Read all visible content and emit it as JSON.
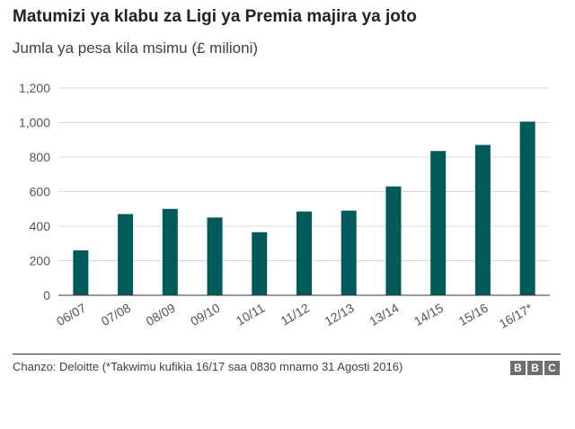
{
  "header": {
    "title": "Matumizi ya klabu za Ligi ya Premia majira ya joto",
    "subtitle": "Jumla ya pesa kila msimu (£ milioni)"
  },
  "footer": {
    "source": "Chanzo: Deloitte (*Takwimu kufikia 16/17 saa 0830 mnamo 31 Agosti 2016)",
    "logo_letters": [
      "B",
      "B",
      "C"
    ]
  },
  "colors": {
    "bar": "#005a5a",
    "grid": "#d9d9d9",
    "axis": "#333333",
    "tick_text": "#555555"
  },
  "chart_data": {
    "type": "bar",
    "categories": [
      "06/07",
      "07/08",
      "08/09",
      "09/10",
      "10/11",
      "11/12",
      "12/13",
      "13/14",
      "14/15",
      "15/16",
      "16/17*"
    ],
    "values": [
      260,
      470,
      500,
      450,
      365,
      485,
      490,
      630,
      835,
      870,
      1005
    ],
    "yticks": [
      "0",
      "200",
      "400",
      "600",
      "800",
      "1,000",
      "1,200"
    ],
    "ytick_values": [
      0,
      200,
      400,
      600,
      800,
      1000,
      1200
    ],
    "ylim": [
      0,
      1200
    ],
    "xlabel": "",
    "ylabel": "",
    "grid": true
  }
}
